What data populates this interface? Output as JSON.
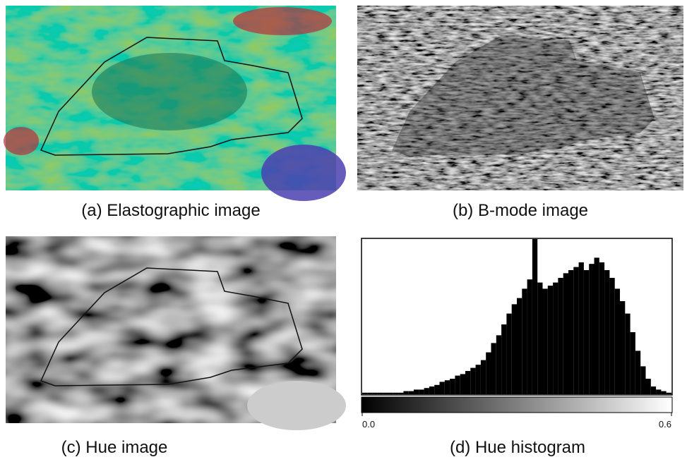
{
  "panels": {
    "a": {
      "caption": "(a) Elastographic image"
    },
    "b": {
      "caption": "(b) B-mode image"
    },
    "c": {
      "caption": "(c) Hue image"
    },
    "d": {
      "caption": "(d) Hue histogram"
    }
  },
  "chart_data": {
    "type": "histogram",
    "bins": [
      0,
      0.01,
      0.02,
      0.03,
      0.04,
      0.05,
      0.06,
      0.07,
      0.08,
      0.09,
      0.1,
      0.11,
      0.12,
      0.13,
      0.14,
      0.15,
      0.16,
      0.17,
      0.18,
      0.19,
      0.2,
      0.21,
      0.22,
      0.23,
      0.24,
      0.25,
      0.26,
      0.27,
      0.28,
      0.29,
      0.3,
      0.31,
      0.32,
      0.33,
      0.34,
      0.35,
      0.36,
      0.37,
      0.38,
      0.39,
      0.4,
      0.41,
      0.42,
      0.43,
      0.44,
      0.45,
      0.46,
      0.47,
      0.48,
      0.49,
      0.5,
      0.51,
      0.52,
      0.53,
      0.54,
      0.55,
      0.56,
      0.57,
      0.58,
      0.59,
      0.6
    ],
    "values": [
      1,
      1,
      1,
      1,
      1,
      1,
      1,
      1,
      2,
      2,
      3,
      3,
      4,
      5,
      6,
      8,
      9,
      10,
      12,
      13,
      15,
      17,
      19,
      22,
      27,
      33,
      38,
      45,
      52,
      58,
      62,
      68,
      74,
      100,
      72,
      68,
      70,
      72,
      75,
      78,
      80,
      82,
      85,
      80,
      84,
      88,
      85,
      80,
      75,
      68,
      60,
      52,
      40,
      28,
      18,
      10,
      5,
      3,
      2,
      1
    ],
    "color": "#000000",
    "xlim": [
      0,
      0.6
    ],
    "ylim": [
      0,
      100
    ],
    "xticks": [
      {
        "value": 0,
        "label": "0.0"
      },
      {
        "value": 0.6,
        "label": "0.6"
      }
    ]
  }
}
